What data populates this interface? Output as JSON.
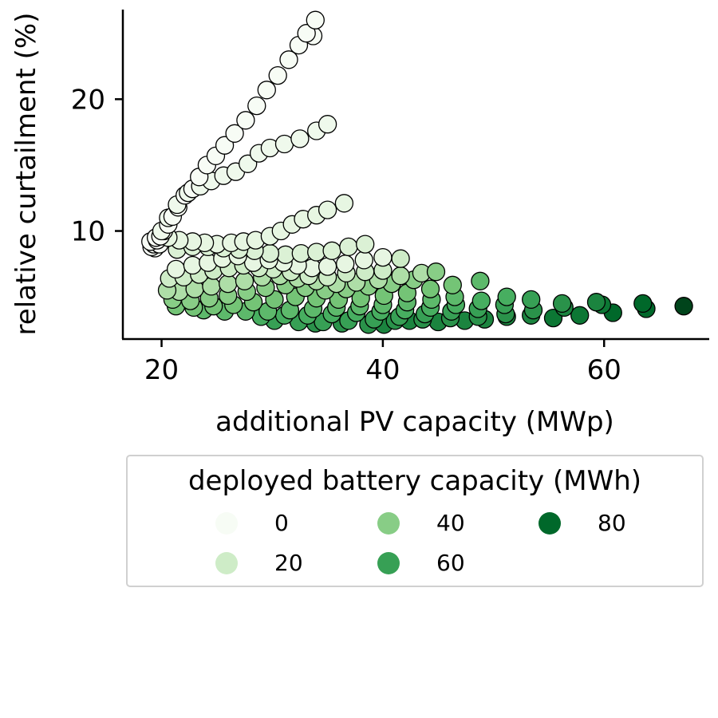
{
  "chart_data": {
    "type": "scatter",
    "xlabel": "additional PV capacity (MWp)",
    "ylabel": "relative curtailment (%)",
    "x_ticks": [
      20,
      40,
      60
    ],
    "y_ticks": [
      10,
      20
    ],
    "xlim": [
      16.5,
      69.5
    ],
    "ylim": [
      1.8,
      26.8
    ],
    "grid": false,
    "legend": {
      "title": "deployed battery capacity (MWh)",
      "placement": "below",
      "entries": [
        {
          "label": "0",
          "value": 0
        },
        {
          "label": "20",
          "value": 20
        },
        {
          "label": "40",
          "value": 40
        },
        {
          "label": "60",
          "value": 60
        },
        {
          "label": "80",
          "value": 80
        }
      ]
    },
    "colormap": {
      "name": "Greens",
      "stops": [
        "#f7fcf5",
        "#e5f5e0",
        "#c7e9c0",
        "#a1d99b",
        "#74c476",
        "#41ab5d",
        "#238b45",
        "#006d2c",
        "#00441b"
      ],
      "vmin": 0,
      "vmax": 90
    },
    "points": [
      {
        "x": 33.9,
        "y": 26.0,
        "b": 0
      },
      {
        "x": 33.7,
        "y": 24.8,
        "b": 0
      },
      {
        "x": 33.1,
        "y": 25.0,
        "b": 0
      },
      {
        "x": 32.4,
        "y": 24.1,
        "b": 0
      },
      {
        "x": 31.5,
        "y": 23.0,
        "b": 0
      },
      {
        "x": 30.5,
        "y": 21.8,
        "b": 0
      },
      {
        "x": 29.5,
        "y": 20.7,
        "b": 0
      },
      {
        "x": 28.6,
        "y": 19.5,
        "b": 0
      },
      {
        "x": 27.6,
        "y": 18.4,
        "b": 0
      },
      {
        "x": 26.6,
        "y": 17.4,
        "b": 0
      },
      {
        "x": 25.7,
        "y": 16.5,
        "b": 0
      },
      {
        "x": 24.9,
        "y": 15.7,
        "b": 0
      },
      {
        "x": 24.1,
        "y": 15.0,
        "b": 0
      },
      {
        "x": 23.4,
        "y": 14.1,
        "b": 0
      },
      {
        "x": 22.8,
        "y": 13.2,
        "b": 0
      },
      {
        "x": 22.1,
        "y": 12.7,
        "b": 0
      },
      {
        "x": 21.5,
        "y": 11.8,
        "b": 0
      },
      {
        "x": 21.0,
        "y": 11.1,
        "b": 0
      },
      {
        "x": 20.6,
        "y": 10.5,
        "b": 0
      },
      {
        "x": 20.2,
        "y": 10.0,
        "b": 0
      },
      {
        "x": 19.9,
        "y": 9.6,
        "b": 0
      },
      {
        "x": 19.6,
        "y": 9.3,
        "b": 0
      },
      {
        "x": 19.3,
        "y": 9.0,
        "b": 0
      },
      {
        "x": 19.1,
        "y": 8.8,
        "b": 0
      },
      {
        "x": 19.0,
        "y": 9.2,
        "b": 0
      },
      {
        "x": 19.4,
        "y": 8.7,
        "b": 0
      },
      {
        "x": 19.8,
        "y": 9.0,
        "b": 0
      },
      {
        "x": 19.5,
        "y": 9.5,
        "b": 0
      },
      {
        "x": 35.0,
        "y": 18.1,
        "b": 5
      },
      {
        "x": 34.0,
        "y": 17.6,
        "b": 5
      },
      {
        "x": 32.5,
        "y": 17.0,
        "b": 5
      },
      {
        "x": 31.1,
        "y": 16.6,
        "b": 5
      },
      {
        "x": 29.8,
        "y": 16.3,
        "b": 5
      },
      {
        "x": 28.8,
        "y": 15.9,
        "b": 5
      },
      {
        "x": 27.8,
        "y": 15.1,
        "b": 5
      },
      {
        "x": 26.7,
        "y": 14.5,
        "b": 5
      },
      {
        "x": 25.6,
        "y": 14.2,
        "b": 5
      },
      {
        "x": 24.5,
        "y": 13.8,
        "b": 5
      },
      {
        "x": 23.5,
        "y": 13.4,
        "b": 5
      },
      {
        "x": 22.4,
        "y": 12.9,
        "b": 5
      },
      {
        "x": 21.4,
        "y": 12.0,
        "b": 5
      },
      {
        "x": 20.6,
        "y": 11.0,
        "b": 5
      },
      {
        "x": 20.0,
        "y": 10.0,
        "b": 5
      },
      {
        "x": 36.5,
        "y": 12.1,
        "b": 10
      },
      {
        "x": 35.0,
        "y": 11.6,
        "b": 10
      },
      {
        "x": 34.0,
        "y": 11.2,
        "b": 10
      },
      {
        "x": 32.8,
        "y": 10.9,
        "b": 10
      },
      {
        "x": 31.8,
        "y": 10.5,
        "b": 10
      },
      {
        "x": 30.8,
        "y": 10.0,
        "b": 10
      },
      {
        "x": 29.8,
        "y": 9.6,
        "b": 10
      },
      {
        "x": 28.5,
        "y": 9.3,
        "b": 10
      },
      {
        "x": 27.4,
        "y": 9.2,
        "b": 10
      },
      {
        "x": 26.3,
        "y": 9.1,
        "b": 10
      },
      {
        "x": 25.0,
        "y": 9.0,
        "b": 10
      },
      {
        "x": 23.9,
        "y": 9.1,
        "b": 10
      },
      {
        "x": 22.8,
        "y": 9.2,
        "b": 10
      },
      {
        "x": 21.6,
        "y": 9.3,
        "b": 10
      },
      {
        "x": 20.6,
        "y": 9.5,
        "b": 10
      },
      {
        "x": 38.4,
        "y": 9.0,
        "b": 15
      },
      {
        "x": 36.9,
        "y": 8.8,
        "b": 15
      },
      {
        "x": 35.4,
        "y": 8.5,
        "b": 15
      },
      {
        "x": 34.0,
        "y": 8.4,
        "b": 15
      },
      {
        "x": 32.6,
        "y": 8.3,
        "b": 15
      },
      {
        "x": 31.2,
        "y": 8.2,
        "b": 15
      },
      {
        "x": 29.8,
        "y": 8.3,
        "b": 15
      },
      {
        "x": 28.4,
        "y": 8.5,
        "b": 15
      },
      {
        "x": 27.0,
        "y": 8.6,
        "b": 15
      },
      {
        "x": 25.6,
        "y": 8.7,
        "b": 15
      },
      {
        "x": 24.2,
        "y": 8.8,
        "b": 15
      },
      {
        "x": 22.8,
        "y": 8.8,
        "b": 15
      },
      {
        "x": 21.4,
        "y": 8.6,
        "b": 15
      },
      {
        "x": 40.0,
        "y": 8.0,
        "b": 10
      },
      {
        "x": 38.3,
        "y": 7.8,
        "b": 10
      },
      {
        "x": 36.6,
        "y": 7.5,
        "b": 10
      },
      {
        "x": 35.0,
        "y": 7.3,
        "b": 10
      },
      {
        "x": 33.6,
        "y": 7.2,
        "b": 10
      },
      {
        "x": 32.3,
        "y": 7.4,
        "b": 10
      },
      {
        "x": 31.0,
        "y": 7.6,
        "b": 10
      },
      {
        "x": 29.7,
        "y": 7.8,
        "b": 10
      },
      {
        "x": 28.3,
        "y": 7.6,
        "b": 10
      },
      {
        "x": 26.9,
        "y": 8.1,
        "b": 10
      },
      {
        "x": 25.5,
        "y": 7.9,
        "b": 10
      },
      {
        "x": 24.2,
        "y": 7.6,
        "b": 10
      },
      {
        "x": 22.8,
        "y": 7.4,
        "b": 10
      },
      {
        "x": 21.3,
        "y": 7.1,
        "b": 10
      },
      {
        "x": 41.6,
        "y": 7.9,
        "b": 20
      },
      {
        "x": 40.0,
        "y": 7.0,
        "b": 20
      },
      {
        "x": 38.4,
        "y": 6.9,
        "b": 20
      },
      {
        "x": 36.7,
        "y": 6.8,
        "b": 20
      },
      {
        "x": 35.0,
        "y": 6.5,
        "b": 20
      },
      {
        "x": 33.3,
        "y": 6.6,
        "b": 20
      },
      {
        "x": 31.7,
        "y": 6.9,
        "b": 20
      },
      {
        "x": 30.1,
        "y": 7.1,
        "b": 20
      },
      {
        "x": 28.8,
        "y": 7.2,
        "b": 20
      },
      {
        "x": 27.4,
        "y": 7.4,
        "b": 20
      },
      {
        "x": 26.1,
        "y": 7.2,
        "b": 20
      },
      {
        "x": 24.7,
        "y": 7.0,
        "b": 20
      },
      {
        "x": 23.4,
        "y": 6.7,
        "b": 20
      },
      {
        "x": 22.0,
        "y": 6.5,
        "b": 20
      },
      {
        "x": 20.7,
        "y": 6.4,
        "b": 20
      },
      {
        "x": 43.5,
        "y": 6.8,
        "b": 30
      },
      {
        "x": 41.6,
        "y": 6.6,
        "b": 30
      },
      {
        "x": 39.6,
        "y": 6.3,
        "b": 30
      },
      {
        "x": 37.6,
        "y": 6.1,
        "b": 30
      },
      {
        "x": 35.8,
        "y": 6.0,
        "b": 30
      },
      {
        "x": 34.0,
        "y": 6.2,
        "b": 30
      },
      {
        "x": 32.3,
        "y": 6.4,
        "b": 30
      },
      {
        "x": 30.7,
        "y": 6.6,
        "b": 30
      },
      {
        "x": 29.1,
        "y": 6.5,
        "b": 30
      },
      {
        "x": 27.5,
        "y": 6.2,
        "b": 30
      },
      {
        "x": 26.0,
        "y": 6.0,
        "b": 30
      },
      {
        "x": 24.5,
        "y": 5.8,
        "b": 30
      },
      {
        "x": 23.0,
        "y": 5.6,
        "b": 30
      },
      {
        "x": 21.6,
        "y": 5.4,
        "b": 30
      },
      {
        "x": 20.5,
        "y": 5.5,
        "b": 30
      },
      {
        "x": 44.8,
        "y": 6.9,
        "b": 40
      },
      {
        "x": 42.8,
        "y": 6.3,
        "b": 40
      },
      {
        "x": 40.8,
        "y": 6.0,
        "b": 40
      },
      {
        "x": 38.7,
        "y": 5.8,
        "b": 40
      },
      {
        "x": 36.7,
        "y": 5.6,
        "b": 40
      },
      {
        "x": 34.8,
        "y": 5.5,
        "b": 40
      },
      {
        "x": 33.0,
        "y": 5.7,
        "b": 40
      },
      {
        "x": 31.2,
        "y": 5.9,
        "b": 40
      },
      {
        "x": 29.4,
        "y": 5.7,
        "b": 40
      },
      {
        "x": 27.7,
        "y": 5.4,
        "b": 40
      },
      {
        "x": 26.0,
        "y": 5.1,
        "b": 40
      },
      {
        "x": 24.3,
        "y": 4.9,
        "b": 40
      },
      {
        "x": 22.6,
        "y": 4.7,
        "b": 40
      },
      {
        "x": 21.0,
        "y": 4.8,
        "b": 40
      },
      {
        "x": 46.3,
        "y": 5.9,
        "b": 45
      },
      {
        "x": 44.3,
        "y": 5.6,
        "b": 45
      },
      {
        "x": 42.2,
        "y": 5.3,
        "b": 45
      },
      {
        "x": 40.1,
        "y": 5.1,
        "b": 45
      },
      {
        "x": 38.0,
        "y": 4.9,
        "b": 45
      },
      {
        "x": 36.0,
        "y": 4.8,
        "b": 45
      },
      {
        "x": 34.0,
        "y": 4.9,
        "b": 45
      },
      {
        "x": 32.1,
        "y": 5.0,
        "b": 45
      },
      {
        "x": 30.2,
        "y": 4.8,
        "b": 45
      },
      {
        "x": 28.3,
        "y": 4.6,
        "b": 45
      },
      {
        "x": 26.5,
        "y": 4.4,
        "b": 45
      },
      {
        "x": 24.7,
        "y": 4.3,
        "b": 45
      },
      {
        "x": 22.9,
        "y": 4.2,
        "b": 45
      },
      {
        "x": 21.3,
        "y": 4.3,
        "b": 45
      },
      {
        "x": 48.8,
        "y": 6.2,
        "b": 50
      },
      {
        "x": 46.5,
        "y": 5.0,
        "b": 50
      },
      {
        "x": 44.4,
        "y": 4.8,
        "b": 50
      },
      {
        "x": 42.2,
        "y": 4.6,
        "b": 50
      },
      {
        "x": 40.0,
        "y": 4.4,
        "b": 50
      },
      {
        "x": 37.9,
        "y": 4.3,
        "b": 50
      },
      {
        "x": 35.8,
        "y": 4.2,
        "b": 50
      },
      {
        "x": 33.7,
        "y": 4.1,
        "b": 50
      },
      {
        "x": 31.6,
        "y": 4.0,
        "b": 50
      },
      {
        "x": 29.6,
        "y": 3.9,
        "b": 50
      },
      {
        "x": 27.6,
        "y": 3.9,
        "b": 50
      },
      {
        "x": 25.7,
        "y": 3.9,
        "b": 50
      },
      {
        "x": 23.8,
        "y": 4.0,
        "b": 50
      },
      {
        "x": 51.2,
        "y": 5.0,
        "b": 55
      },
      {
        "x": 48.9,
        "y": 4.7,
        "b": 55
      },
      {
        "x": 46.6,
        "y": 4.4,
        "b": 55
      },
      {
        "x": 44.3,
        "y": 4.2,
        "b": 55
      },
      {
        "x": 42.0,
        "y": 4.0,
        "b": 55
      },
      {
        "x": 39.8,
        "y": 3.9,
        "b": 55
      },
      {
        "x": 37.6,
        "y": 3.8,
        "b": 55
      },
      {
        "x": 35.4,
        "y": 3.7,
        "b": 55
      },
      {
        "x": 33.2,
        "y": 3.6,
        "b": 55
      },
      {
        "x": 31.1,
        "y": 3.6,
        "b": 55
      },
      {
        "x": 29.0,
        "y": 3.5,
        "b": 55
      },
      {
        "x": 53.4,
        "y": 4.8,
        "b": 60
      },
      {
        "x": 51.0,
        "y": 4.4,
        "b": 60
      },
      {
        "x": 48.6,
        "y": 4.1,
        "b": 60
      },
      {
        "x": 46.2,
        "y": 3.9,
        "b": 60
      },
      {
        "x": 43.8,
        "y": 3.7,
        "b": 60
      },
      {
        "x": 41.5,
        "y": 3.5,
        "b": 60
      },
      {
        "x": 39.2,
        "y": 3.3,
        "b": 60
      },
      {
        "x": 36.9,
        "y": 3.2,
        "b": 60
      },
      {
        "x": 34.6,
        "y": 3.1,
        "b": 60
      },
      {
        "x": 32.4,
        "y": 3.1,
        "b": 60
      },
      {
        "x": 30.2,
        "y": 3.2,
        "b": 60
      },
      {
        "x": 56.2,
        "y": 4.5,
        "b": 65
      },
      {
        "x": 53.6,
        "y": 4.0,
        "b": 65
      },
      {
        "x": 51.1,
        "y": 3.7,
        "b": 65
      },
      {
        "x": 48.6,
        "y": 3.5,
        "b": 65
      },
      {
        "x": 46.1,
        "y": 3.4,
        "b": 65
      },
      {
        "x": 43.6,
        "y": 3.3,
        "b": 65
      },
      {
        "x": 41.1,
        "y": 3.2,
        "b": 65
      },
      {
        "x": 38.7,
        "y": 2.9,
        "b": 65
      },
      {
        "x": 36.3,
        "y": 3.0,
        "b": 65
      },
      {
        "x": 33.9,
        "y": 3.0,
        "b": 65
      },
      {
        "x": 59.3,
        "y": 4.6,
        "b": 70
      },
      {
        "x": 56.4,
        "y": 4.2,
        "b": 70
      },
      {
        "x": 53.4,
        "y": 3.6,
        "b": 70
      },
      {
        "x": 51.2,
        "y": 3.5,
        "b": 70
      },
      {
        "x": 49.2,
        "y": 3.3,
        "b": 70
      },
      {
        "x": 47.4,
        "y": 3.2,
        "b": 70
      },
      {
        "x": 45.0,
        "y": 3.1,
        "b": 70
      },
      {
        "x": 42.4,
        "y": 3.2,
        "b": 70
      },
      {
        "x": 40.1,
        "y": 2.9,
        "b": 70
      },
      {
        "x": 59.8,
        "y": 4.4,
        "b": 75
      },
      {
        "x": 57.8,
        "y": 3.6,
        "b": 75
      },
      {
        "x": 55.4,
        "y": 3.4,
        "b": 75
      },
      {
        "x": 60.8,
        "y": 3.8,
        "b": 80
      },
      {
        "x": 63.5,
        "y": 4.5,
        "b": 80
      },
      {
        "x": 63.8,
        "y": 4.1,
        "b": 80
      },
      {
        "x": 67.2,
        "y": 4.3,
        "b": 90
      }
    ]
  }
}
